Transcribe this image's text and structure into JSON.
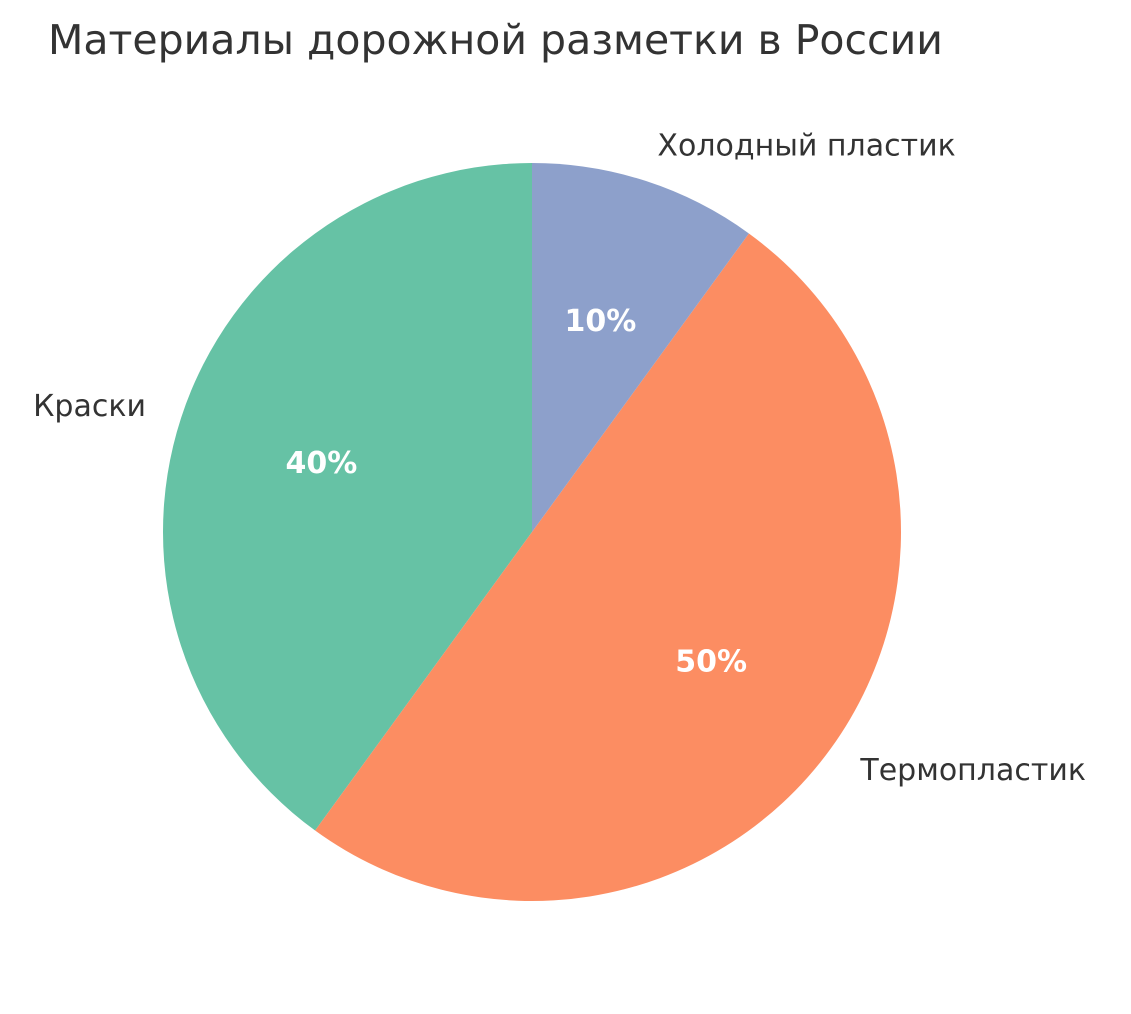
{
  "chart_data": {
    "type": "pie",
    "title": "Материалы дорожной разметки в России",
    "slices": [
      {
        "label": "Краски",
        "value": 40,
        "pct_label": "40%",
        "color": "#66c2a5"
      },
      {
        "label": "Термопластик",
        "value": 50,
        "pct_label": "50%",
        "color": "#fc8d62"
      },
      {
        "label": "Холодный пластик",
        "value": 10,
        "pct_label": "10%",
        "color": "#8da0cb"
      }
    ],
    "start_angle_deg": 90,
    "direction": "counterclockwise"
  }
}
